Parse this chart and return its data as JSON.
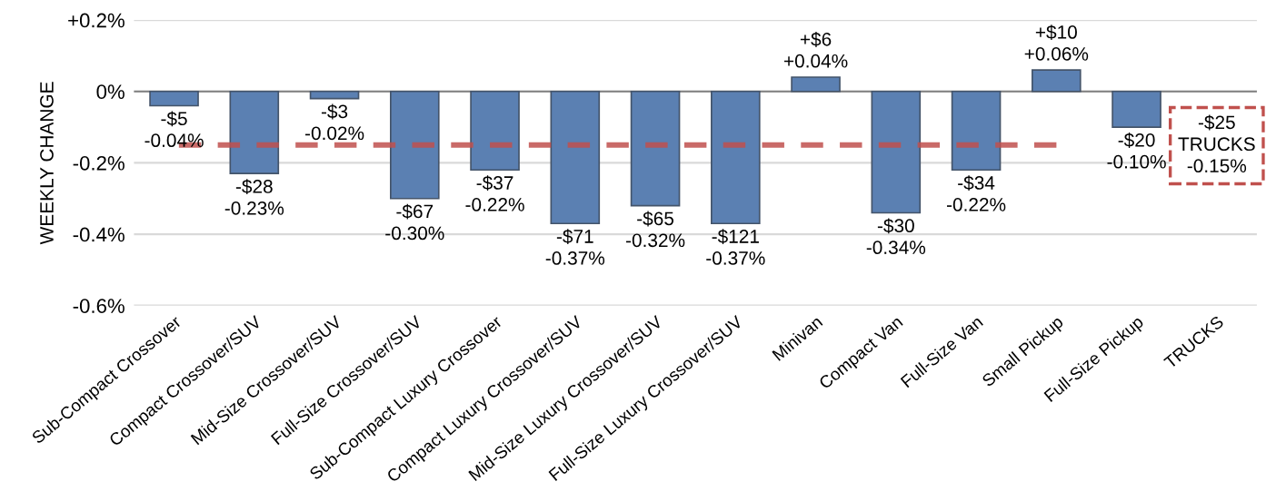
{
  "chart_data": {
    "type": "bar",
    "ylabel": "WEEKLY CHANGE",
    "categories": [
      "Sub-Compact Crossover",
      "Compact Crossover/SUV",
      "Mid-Size Crossover/SUV",
      "Full-Size Crossover/SUV",
      "Sub-Compact Luxury Crossover",
      "Compact Luxury Crossover/SUV",
      "Mid-Size Luxury Crossover/SUV",
      "Full-Size Luxury Crossover/SUV",
      "Minivan",
      "Compact Van",
      "Full-Size Van",
      "Small Pickup",
      "Full-Size Pickup",
      "TRUCKS"
    ],
    "values": [
      -0.04,
      -0.23,
      -0.02,
      -0.3,
      -0.22,
      -0.37,
      -0.32,
      -0.37,
      0.04,
      -0.34,
      -0.22,
      0.06,
      -0.1,
      null
    ],
    "value_labels": [
      "-$5\n-0.04%",
      "-$28\n-0.23%",
      "-$3\n-0.02%",
      "-$67\n-0.30%",
      "-$37\n-0.22%",
      "-$71\n-0.37%",
      "-$65\n-0.32%",
      "-$121\n-0.37%",
      "+$6\n+0.04%",
      "-$30\n-0.34%",
      "-$34\n-0.22%",
      "+$10\n+0.06%",
      "-$20\n-0.10%",
      null
    ],
    "color": "#5b80b2",
    "ylim": [
      -0.6,
      0.2
    ],
    "yticks": [
      {
        "value": 0.2,
        "label": "+0.2%"
      },
      {
        "value": 0,
        "label": "0%"
      },
      {
        "value": -0.2,
        "label": "-0.2%"
      },
      {
        "value": -0.4,
        "label": "-0.4%"
      },
      {
        "value": -0.6,
        "label": "-0.6%"
      }
    ],
    "grid": "y",
    "ref_lines": [
      {
        "axis": "y",
        "value": -0.15,
        "color": "#c0504d",
        "line_style": "dashed"
      }
    ],
    "annotations": [
      "-$25\nTRUCKS\n-0.15%"
    ]
  }
}
